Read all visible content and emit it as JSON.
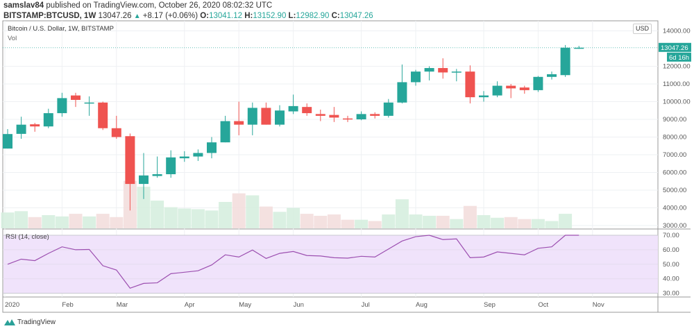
{
  "header": {
    "author": "samslav84",
    "published": "published on TradingView.com, October 26, 2020 08:02:32 UTC",
    "symbol": "BITSTAMP:BTCUSD, 1W",
    "last": "13047.26",
    "change": "+8.17 (+0.06%)",
    "o_label": "O:",
    "o": "13041.12",
    "h_label": "H:",
    "h": "13152.90",
    "l_label": "L:",
    "l": "12982.90",
    "c_label": "C:",
    "c": "13047.26"
  },
  "pane": {
    "title": "Bitcoin / U.S. Dollar, 1W, BITSTAMP",
    "vol_label": "Vol",
    "currency": "USD",
    "price_tag": "13047.26",
    "countdown": "6d 16h"
  },
  "rsi_label": "RSI (14, close)",
  "brand": "TradingView",
  "colors": {
    "up": "#26a69a",
    "down": "#ef5350",
    "rsi_line": "#9c4fb0",
    "rsi_band": "#f0e3fb"
  },
  "chart_data": [
    {
      "type": "candlestick",
      "title": "Bitcoin / U.S. Dollar, 1W, BITSTAMP",
      "ylim": [
        3000,
        14000
      ],
      "yticks": [
        "14000.00",
        "12000.00",
        "11000.00",
        "10000.00",
        "9000.00",
        "8000.00",
        "7000.00",
        "6000.00",
        "5000.00",
        "4000.00",
        "3000.00"
      ],
      "xticks": [
        {
          "label": "2020",
          "week": 0
        },
        {
          "label": "Feb",
          "week": 4
        },
        {
          "label": "Mar",
          "week": 8
        },
        {
          "label": "Apr",
          "week": 13
        },
        {
          "label": "May",
          "week": 17
        },
        {
          "label": "Jun",
          "week": 21
        },
        {
          "label": "Jul",
          "week": 26
        },
        {
          "label": "Aug",
          "week": 30
        },
        {
          "label": "Sep",
          "week": 35
        },
        {
          "label": "Oct",
          "week": 39
        },
        {
          "label": "Nov",
          "week": 43
        }
      ],
      "ohlc": [
        [
          7350,
          8450,
          7350,
          8170
        ],
        [
          8180,
          9150,
          7900,
          8700
        ],
        [
          8720,
          8800,
          8300,
          8600
        ],
        [
          8600,
          9600,
          8500,
          9350
        ],
        [
          9350,
          10500,
          9150,
          10200
        ],
        [
          10350,
          10500,
          9700,
          10100
        ],
        [
          9900,
          10300,
          9200,
          9950
        ],
        [
          9950,
          10000,
          8400,
          8500
        ],
        [
          8500,
          9200,
          7900,
          8000
        ],
        [
          8050,
          8200,
          3850,
          5350
        ],
        [
          5350,
          7100,
          4500,
          5830
        ],
        [
          5800,
          6900,
          5700,
          5900
        ],
        [
          5900,
          7250,
          5700,
          6850
        ],
        [
          6800,
          7200,
          6600,
          6900
        ],
        [
          6900,
          7300,
          6650,
          7100
        ],
        [
          7100,
          8000,
          6800,
          7700
        ],
        [
          7700,
          9200,
          7700,
          8900
        ],
        [
          8900,
          10000,
          8100,
          8700
        ],
        [
          8700,
          9950,
          8100,
          9650
        ],
        [
          9650,
          9950,
          8700,
          8700
        ],
        [
          8700,
          9800,
          8600,
          9500
        ],
        [
          9450,
          10400,
          9300,
          9750
        ],
        [
          9700,
          9900,
          9200,
          9350
        ],
        [
          9300,
          9550,
          8900,
          9200
        ],
        [
          9250,
          9700,
          8850,
          9100
        ],
        [
          9050,
          9200,
          8850,
          9000
        ],
        [
          9000,
          9450,
          8950,
          9300
        ],
        [
          9300,
          9400,
          9050,
          9200
        ],
        [
          9200,
          10150,
          9100,
          9950
        ],
        [
          9950,
          12100,
          9900,
          11100
        ],
        [
          11100,
          11800,
          10900,
          11700
        ],
        [
          11700,
          12000,
          11200,
          11900
        ],
        [
          11900,
          12450,
          11300,
          11650
        ],
        [
          11650,
          11850,
          11150,
          11700
        ],
        [
          11700,
          12050,
          9900,
          10250
        ],
        [
          10250,
          10600,
          10000,
          10350
        ],
        [
          10350,
          11150,
          10250,
          10900
        ],
        [
          10900,
          11000,
          10200,
          10750
        ],
        [
          10800,
          10900,
          10450,
          10650
        ],
        [
          10650,
          11450,
          10550,
          11400
        ],
        [
          11400,
          11700,
          11250,
          11550
        ],
        [
          11500,
          13200,
          11400,
          13050
        ],
        [
          13041.12,
          13152.9,
          12982.9,
          13047.26
        ]
      ],
      "volume_relative": [
        24,
        26,
        17,
        20,
        18,
        22,
        18,
        22,
        17,
        72,
        63,
        42,
        32,
        30,
        29,
        27,
        40,
        53,
        50,
        33,
        25,
        31,
        22,
        19,
        21,
        13,
        13,
        11,
        21,
        44,
        21,
        19,
        19,
        14,
        34,
        20,
        16,
        17,
        14,
        14,
        11,
        22,
        0
      ]
    },
    {
      "type": "line",
      "title": "RSI (14, close)",
      "ylim": [
        25,
        75
      ],
      "band": [
        30,
        70
      ],
      "yticks": [
        "70.00",
        "60.00",
        "50.00",
        "40.00",
        "30.00"
      ],
      "values": [
        50,
        53.5,
        52.5,
        57.5,
        62,
        60,
        60.2,
        49,
        46,
        33.5,
        36.8,
        37.2,
        43.5,
        44.5,
        45.5,
        49.5,
        56.5,
        55,
        59.8,
        54,
        57.5,
        58.8,
        56,
        55.7,
        54.5,
        54.2,
        55.5,
        55,
        60.5,
        66,
        69,
        70,
        67,
        67.5,
        54.5,
        55,
        58.5,
        57.5,
        56.5,
        61,
        62,
        70,
        70
      ]
    }
  ]
}
